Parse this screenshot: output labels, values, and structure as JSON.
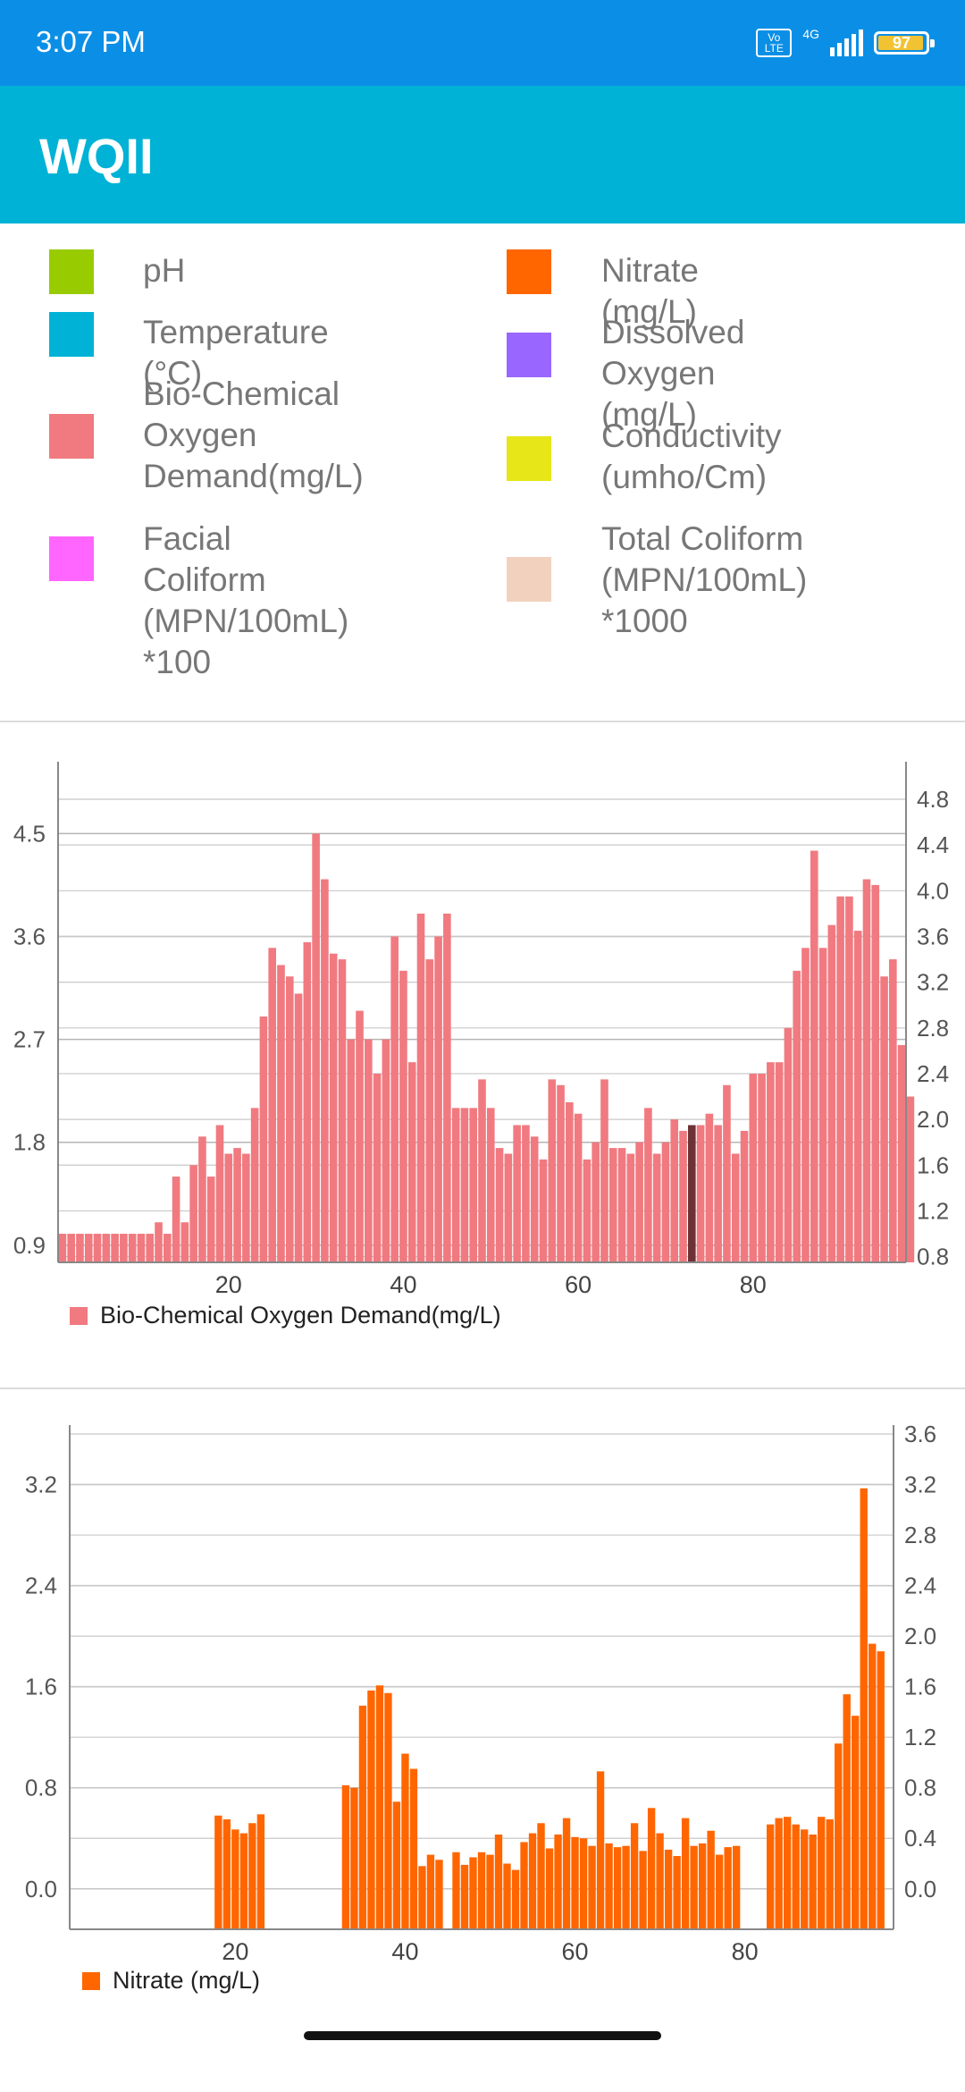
{
  "status_bar": {
    "time": "3:07 PM",
    "volte": "Vo LTE",
    "network": "4G",
    "battery": "97"
  },
  "app_bar": {
    "title": "WQII"
  },
  "legend": [
    {
      "label": "pH",
      "color": "#99cc00"
    },
    {
      "label": "Nitrate (mg/L)",
      "color": "#ff6600"
    },
    {
      "label": "Temperature (°C)",
      "color": "#00b2d6"
    },
    {
      "label": "Dissolved Oxygen\n(mg/L)",
      "color": "#9966ff"
    },
    {
      "label": "Bio-Chemical\nOxygen\nDemand(mg/L)",
      "color": "#f07a80"
    },
    {
      "label": "Conductivity\n(umho/Cm)",
      "color": "#e6e619"
    },
    {
      "label": "Facial Coliform\n(MPN/100mL) *100",
      "color": "#ff66ff"
    },
    {
      "label": "Total Coliform\n(MPN/100mL)\n*1000",
      "color": "#f2d2be"
    }
  ],
  "chart_data": [
    {
      "type": "bar",
      "series": [
        {
          "name": "Bio-Chemical Oxygen Demand(mg/L)",
          "color": "#f07a80",
          "highlight_color": "#6e3236",
          "highlight_x": 73,
          "x_start": 1,
          "values": [
            1.0,
            1.0,
            1.0,
            1.0,
            1.0,
            1.0,
            1.0,
            1.0,
            1.0,
            1.0,
            1.0,
            1.1,
            1.0,
            1.5,
            1.1,
            1.6,
            1.85,
            1.5,
            1.95,
            1.7,
            1.75,
            1.7,
            2.1,
            2.9,
            3.5,
            3.35,
            3.25,
            3.1,
            3.55,
            4.5,
            4.1,
            3.45,
            3.4,
            2.7,
            2.95,
            2.7,
            2.4,
            2.7,
            3.6,
            3.3,
            2.5,
            3.8,
            3.4,
            3.6,
            3.8,
            2.1,
            2.1,
            2.1,
            2.35,
            2.1,
            1.75,
            1.7,
            1.95,
            1.95,
            1.85,
            1.65,
            2.35,
            2.3,
            2.15,
            2.05,
            1.65,
            1.8,
            2.35,
            1.75,
            1.75,
            1.7,
            1.8,
            2.1,
            1.7,
            1.8,
            2.0,
            1.9,
            1.95,
            1.95,
            2.05,
            1.95,
            2.3,
            1.7,
            1.9,
            2.4,
            2.4,
            2.5,
            2.5,
            2.8,
            3.3,
            3.5,
            4.35,
            3.5,
            3.7,
            3.95,
            3.95,
            3.65,
            4.1,
            4.05,
            3.25,
            3.4,
            2.65,
            2.2
          ]
        }
      ],
      "x_ticks": [
        "20",
        "40",
        "60",
        "80"
      ],
      "x_tick_values": [
        20,
        40,
        60,
        80
      ],
      "xlim": [
        0.5,
        97.5
      ],
      "left_ticks": [
        "0.9",
        "1.8",
        "2.7",
        "3.6",
        "4.5"
      ],
      "left_tick_values": [
        0.9,
        1.8,
        2.7,
        3.6,
        4.5
      ],
      "right_ticks": [
        "0.8",
        "1.2",
        "1.6",
        "2.0",
        "2.4",
        "2.8",
        "3.2",
        "3.6",
        "4.0",
        "4.4",
        "4.8"
      ],
      "right_tick_values": [
        0.8,
        1.2,
        1.6,
        2.0,
        2.4,
        2.8,
        3.2,
        3.6,
        4.0,
        4.4,
        4.8
      ],
      "ylim": [
        0.75,
        5.05
      ],
      "grid": true,
      "legend_position": "bottom-left",
      "legend_label": "Bio-Chemical Oxygen Demand(mg/L)",
      "legend_color": "#f07a80"
    },
    {
      "type": "bar",
      "series": [
        {
          "name": "Nitrate (mg/L)",
          "color": "#ff6600",
          "x_start": 1,
          "values": [
            0,
            0,
            0,
            0,
            0,
            0,
            0,
            0,
            0,
            0,
            0,
            0,
            0,
            0,
            0,
            0,
            0,
            0.58,
            0.55,
            0.47,
            0.44,
            0.52,
            0.59,
            0,
            0,
            0,
            0,
            0,
            0,
            0,
            0,
            0,
            0.82,
            0.8,
            1.45,
            1.57,
            1.61,
            1.55,
            0.69,
            1.07,
            0.95,
            0.18,
            0.27,
            0.23,
            0,
            0.29,
            0.19,
            0.25,
            0.29,
            0.27,
            0.43,
            0.2,
            0.15,
            0.37,
            0.44,
            0.52,
            0.32,
            0.43,
            0.56,
            0.41,
            0.4,
            0.34,
            0.93,
            0.36,
            0.33,
            0.34,
            0.52,
            0.3,
            0.64,
            0.44,
            0.31,
            0.26,
            0.56,
            0.34,
            0.36,
            0.46,
            0.27,
            0.33,
            0.34,
            0,
            0,
            0,
            0.51,
            0.56,
            0.57,
            0.51,
            0.47,
            0.43,
            0.57,
            0.55,
            1.15,
            1.54,
            1.37,
            3.17,
            1.94,
            1.88
          ]
        }
      ],
      "x_ticks": [
        "20",
        "40",
        "60",
        "80"
      ],
      "x_tick_values": [
        20,
        40,
        60,
        80
      ],
      "xlim": [
        0.5,
        97.5
      ],
      "left_ticks": [
        "0.0",
        "0.8",
        "1.6",
        "2.4",
        "3.2"
      ],
      "left_tick_values": [
        0.0,
        0.8,
        1.6,
        2.4,
        3.2
      ],
      "right_ticks": [
        "0.0",
        "0.4",
        "0.8",
        "1.2",
        "1.6",
        "2.0",
        "2.4",
        "2.8",
        "3.2",
        "3.6"
      ],
      "right_tick_values": [
        0.0,
        0.4,
        0.8,
        1.2,
        1.6,
        2.0,
        2.4,
        2.8,
        3.2,
        3.6
      ],
      "ylim": [
        -0.32,
        3.6
      ],
      "grid": true,
      "legend_position": "bottom-left",
      "legend_label": "Nitrate (mg/L)",
      "legend_color": "#ff6600"
    }
  ]
}
